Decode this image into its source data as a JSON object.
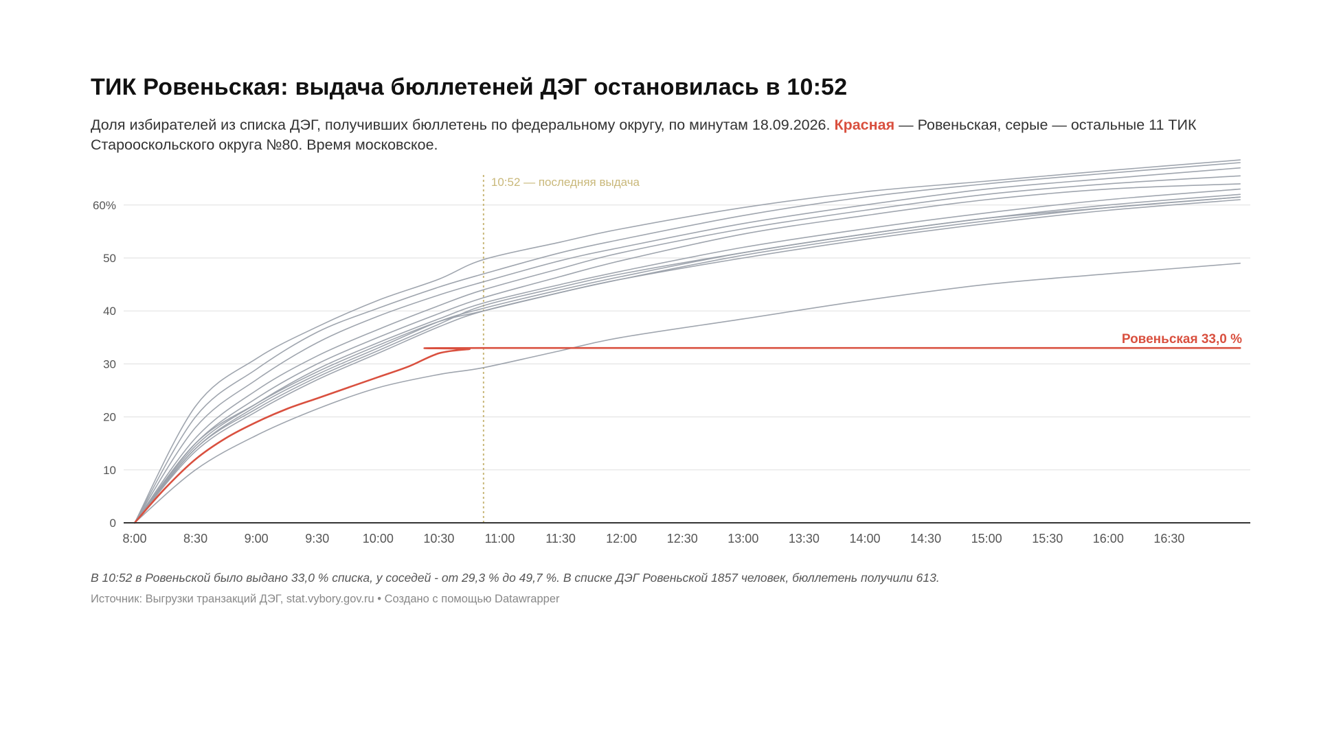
{
  "title": "ТИК Ровеньская: выдача бюллетеней ДЭГ остановилась в 10:52",
  "subtitle": {
    "part1": "Доля избирателей из списка ДЭГ, получивших бюллетень по федеральному округу, по минутам 18.09.2026. ",
    "highlight": "Красная",
    "part2": " — Ровеньская, серые — остальные 11 ТИК Старооскольского округа №80. Время московское."
  },
  "footnote": "В 10:52 в Ровеньской было выдано 33,0 % списка, у соседей -  от 29,3 % до 49,7 %. В списке ДЭГ Ровеньской 1857 человек, бюллетень получили 613.",
  "source": {
    "text": "Источник: Выгрузки транзакций ДЭГ, stat.vybory.gov.ru",
    "separator": "•",
    "credit": "Создано с помощью Datawrapper"
  },
  "colors": {
    "highlight": "#d9503f",
    "others": "#9aa0aa",
    "grid": "#e4e4e4",
    "axis": "#333333",
    "marker": "#c9b87a",
    "tick_label": "#555555"
  },
  "chart_data": {
    "type": "line",
    "x_unit": "time HH:MM",
    "xlim": [
      "8:00",
      "17:10"
    ],
    "ylim": [
      0,
      68
    ],
    "y_ticks": [
      0,
      10,
      20,
      30,
      40,
      50,
      60
    ],
    "y_tick_labels": [
      "0",
      "10",
      "20",
      "30",
      "40",
      "50",
      "60%"
    ],
    "x_ticks": [
      "8:00",
      "8:30",
      "9:00",
      "9:30",
      "10:00",
      "10:30",
      "11:00",
      "11:30",
      "12:00",
      "12:30",
      "13:00",
      "13:30",
      "14:00",
      "14:30",
      "15:00",
      "15:30",
      "16:00",
      "16:30"
    ],
    "grid": true,
    "legend": "none",
    "marker": {
      "x": "10:52",
      "label": "10:52 — последняя выдача"
    },
    "highlight_label": "Ровеньская 33,0 %",
    "series": [
      {
        "name": "Ровеньская",
        "highlight": true,
        "x": [
          "8:00",
          "8:15",
          "8:30",
          "8:45",
          "9:00",
          "9:15",
          "9:30",
          "9:45",
          "10:00",
          "10:15",
          "10:30",
          "10:45",
          "10:52",
          "17:05"
        ],
        "y": [
          0,
          6.5,
          12,
          16,
          19,
          21.5,
          23.5,
          25.5,
          27.5,
          29.5,
          32,
          32.8,
          33.0,
          33.0
        ]
      },
      {
        "x": [
          "8:00",
          "8:30",
          "9:00",
          "9:30",
          "10:00",
          "10:30",
          "10:52",
          "11:30",
          "12:00",
          "13:00",
          "14:00",
          "15:00",
          "16:00",
          "17:05"
        ],
        "y": [
          0,
          22,
          31,
          37,
          42,
          46,
          49.7,
          53,
          55.5,
          59.5,
          62.5,
          64.5,
          66.5,
          68.5
        ]
      },
      {
        "x": [
          "8:00",
          "8:30",
          "9:00",
          "9:30",
          "10:00",
          "10:30",
          "10:52",
          "11:30",
          "12:00",
          "13:00",
          "14:00",
          "15:00",
          "16:00",
          "17:05"
        ],
        "y": [
          0,
          20,
          29,
          36,
          40.5,
          44.5,
          47,
          51,
          53.5,
          58,
          61.5,
          64,
          66,
          68
        ]
      },
      {
        "x": [
          "8:00",
          "8:30",
          "9:00",
          "9:30",
          "10:00",
          "10:30",
          "10:52",
          "11:30",
          "12:00",
          "13:00",
          "14:00",
          "15:00",
          "16:00",
          "17:05"
        ],
        "y": [
          0,
          18,
          27,
          34,
          39,
          43,
          45.5,
          49.5,
          52,
          56.5,
          60,
          63,
          65,
          67
        ]
      },
      {
        "x": [
          "8:00",
          "8:30",
          "9:00",
          "9:30",
          "10:00",
          "10:30",
          "10:52",
          "11:30",
          "12:00",
          "13:00",
          "14:00",
          "15:00",
          "16:00",
          "17:05"
        ],
        "y": [
          0,
          16,
          25,
          31.5,
          36.5,
          41,
          44,
          48,
          51,
          55.5,
          59,
          62,
          64,
          65.5
        ]
      },
      {
        "x": [
          "8:00",
          "8:30",
          "9:00",
          "9:30",
          "10:00",
          "10:30",
          "10:52",
          "11:30",
          "12:00",
          "13:00",
          "14:00",
          "15:00",
          "16:00",
          "17:05"
        ],
        "y": [
          0,
          15,
          23.5,
          30,
          35,
          39.5,
          42.5,
          46.5,
          49.5,
          54.5,
          58,
          61,
          63,
          64
        ]
      },
      {
        "x": [
          "8:00",
          "8:30",
          "9:00",
          "9:30",
          "10:00",
          "10:30",
          "10:52",
          "11:30",
          "12:00",
          "13:00",
          "14:00",
          "15:00",
          "16:00",
          "17:05"
        ],
        "y": [
          0,
          14.5,
          22.5,
          29,
          34,
          38.5,
          41.5,
          45,
          47.5,
          52,
          55.5,
          58.5,
          61,
          63
        ]
      },
      {
        "x": [
          "8:00",
          "8:30",
          "9:00",
          "9:30",
          "10:00",
          "10:30",
          "10:52",
          "11:30",
          "12:00",
          "13:00",
          "14:00",
          "15:00",
          "16:00",
          "17:05"
        ],
        "y": [
          0,
          14,
          22,
          28,
          33,
          38,
          40.5,
          44,
          46.5,
          51,
          54.5,
          57.5,
          60,
          62
        ]
      },
      {
        "x": [
          "8:00",
          "8:30",
          "9:00",
          "9:30",
          "10:00",
          "10:30",
          "10:52",
          "11:30",
          "12:00",
          "13:00",
          "14:00",
          "15:00",
          "16:00",
          "17:05"
        ],
        "y": [
          0,
          13.5,
          21,
          27,
          32,
          37,
          40,
          43.5,
          46,
          50.5,
          54,
          57,
          59.5,
          61.5
        ]
      },
      {
        "x": [
          "8:00",
          "8:30",
          "9:00",
          "9:30",
          "10:00",
          "10:30",
          "10:52",
          "11:30",
          "12:00",
          "13:00",
          "14:00",
          "15:00",
          "16:00",
          "17:05"
        ],
        "y": [
          0,
          14,
          21.5,
          27.5,
          32.5,
          37.5,
          41,
          44.5,
          47,
          51,
          54.5,
          57.5,
          59.5,
          61.5
        ]
      },
      {
        "x": [
          "8:00",
          "8:30",
          "9:00",
          "9:30",
          "10:00",
          "10:30",
          "10:52",
          "11:30",
          "12:00",
          "13:00",
          "14:00",
          "15:00",
          "16:00",
          "17:05"
        ],
        "y": [
          0,
          15,
          22.5,
          28.5,
          33.5,
          38,
          40,
          43.5,
          46,
          50,
          53.5,
          56.5,
          59,
          61
        ]
      },
      {
        "x": [
          "8:00",
          "8:30",
          "9:00",
          "9:30",
          "10:00",
          "10:30",
          "10:52",
          "11:30",
          "12:00",
          "13:00",
          "14:00",
          "15:00",
          "16:00",
          "17:05"
        ],
        "y": [
          0,
          10,
          16.5,
          21.5,
          25.5,
          28,
          29.3,
          32.5,
          35,
          38.5,
          42,
          45,
          47,
          49
        ]
      }
    ]
  }
}
